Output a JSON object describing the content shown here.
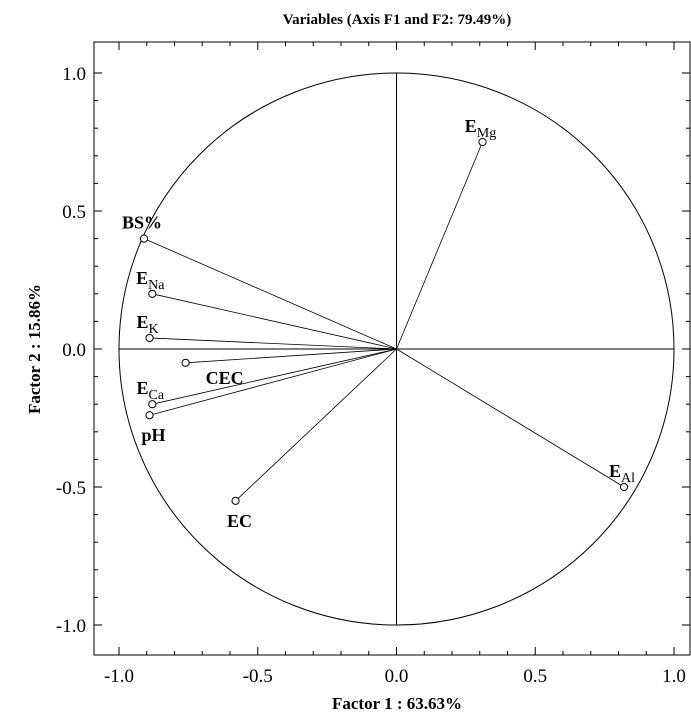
{
  "chart_data": {
    "type": "scatter",
    "title": "Variables (Axis F1 and F2: 79.49%)",
    "xlabel": "Factor 1 : 63.63%",
    "ylabel": "Factor 2 : 15.86%",
    "xlim": [
      -1.0,
      1.0
    ],
    "ylim": [
      -1.0,
      1.0
    ],
    "x_ticks": [
      "-1.0",
      "-0.5",
      "0.0",
      "0.5",
      "1.0"
    ],
    "y_ticks": [
      "1.0",
      "0.5",
      "0.0",
      "-0.5",
      "-1.0"
    ],
    "grid": false,
    "correlation_circle": true,
    "points": [
      {
        "label": "E",
        "sub": "Mg",
        "x": 0.31,
        "y": 0.75,
        "anchor": "above"
      },
      {
        "label": "BS%",
        "sub": "",
        "x": -0.91,
        "y": 0.4,
        "anchor": "above"
      },
      {
        "label": "E",
        "sub": "Na",
        "x": -0.88,
        "y": 0.2,
        "anchor": "above"
      },
      {
        "label": "E",
        "sub": "K",
        "x": -0.89,
        "y": 0.04,
        "anchor": "above"
      },
      {
        "label": "CEC",
        "sub": "",
        "x": -0.76,
        "y": -0.05,
        "anchor": "below-right"
      },
      {
        "label": "E",
        "sub": "Ca",
        "x": -0.88,
        "y": -0.2,
        "anchor": "above"
      },
      {
        "label": "pH",
        "sub": "",
        "x": -0.89,
        "y": -0.24,
        "anchor": "below"
      },
      {
        "label": "EC",
        "sub": "",
        "x": -0.58,
        "y": -0.55,
        "anchor": "below"
      },
      {
        "label": "E",
        "sub": "Al",
        "x": 0.82,
        "y": -0.5,
        "anchor": "above"
      }
    ]
  }
}
